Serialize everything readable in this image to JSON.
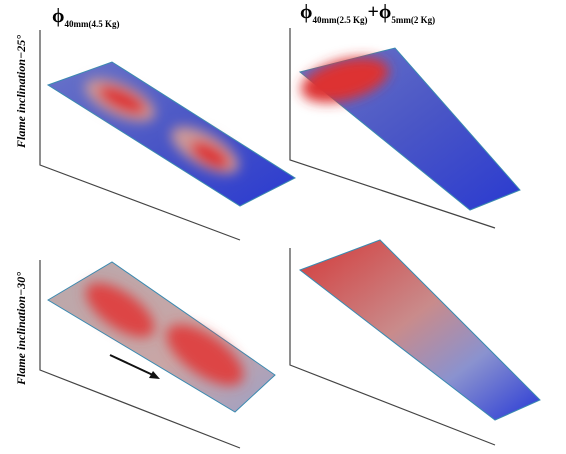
{
  "columns": [
    {
      "terms": [
        {
          "symbol": "ϕ",
          "subscript": "40mm(4.5 Kg)"
        }
      ]
    },
    {
      "terms": [
        {
          "symbol": "ϕ",
          "subscript": "40mm(2.5 Kg)"
        },
        {
          "symbol": "ϕ",
          "subscript": "5mm(2 Kg)"
        }
      ],
      "operator": "+"
    }
  ],
  "rows": [
    {
      "label": "Flame inclination−25°"
    },
    {
      "label": "Flame inclination−30°"
    }
  ]
}
